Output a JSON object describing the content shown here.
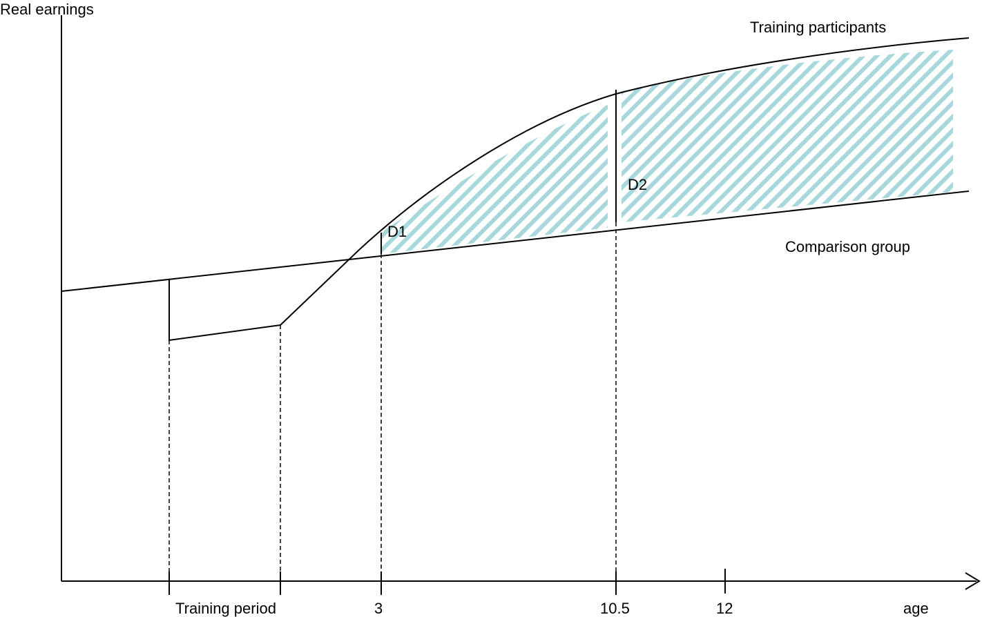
{
  "axes": {
    "y_label": "Real earnings",
    "x_label": "age"
  },
  "x_ticks": {
    "training_period": "Training period",
    "t3": "3",
    "t10_5": "10.5",
    "t12": "12"
  },
  "series": {
    "participants": "Training participants",
    "comparison": "Comparison group"
  },
  "markers": {
    "d1": "D1",
    "d2": "D2"
  },
  "colors": {
    "hatch": "#a9d8dc",
    "line": "#000000"
  }
}
